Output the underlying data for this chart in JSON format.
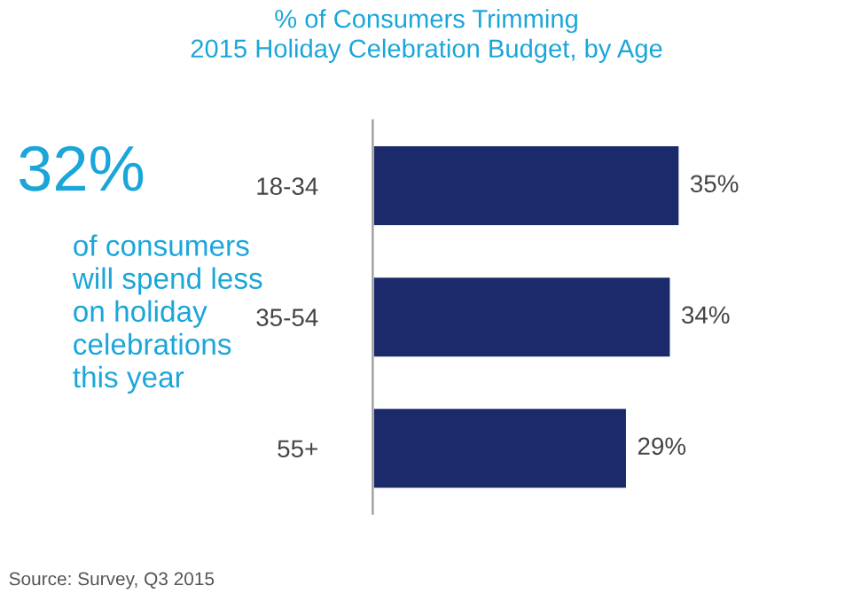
{
  "chart_data": {
    "type": "bar",
    "orientation": "horizontal",
    "title": "% of Consumers Trimming\n2015 Holiday Celebration Budget, by Age",
    "categories": [
      "18-34",
      "35-54",
      "55+"
    ],
    "values": [
      35,
      34,
      29
    ],
    "value_labels": [
      "35%",
      "34%",
      "29%"
    ],
    "color": "#1b2a6b",
    "tick_labels": "y",
    "grid": false,
    "legend": false,
    "annotations": [
      "32%",
      "of consumers\nwill spend less\non holiday\ncelebrations\nthis year",
      "Source: Survey, Q3 2015"
    ]
  }
}
